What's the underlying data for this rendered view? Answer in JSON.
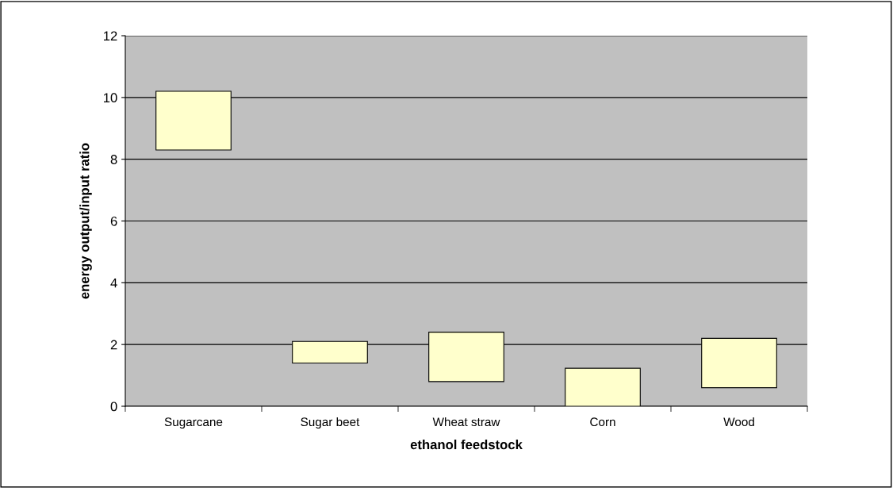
{
  "chart_data": {
    "type": "bar",
    "xlabel": "ethanol feedstock",
    "ylabel": "energy output/input ratio",
    "categories": [
      "Sugarcane",
      "Sugar beet",
      "Wheat straw",
      "Corn",
      "Wood"
    ],
    "base": [
      8.3,
      1.4,
      0.8,
      0,
      0.6
    ],
    "values": [
      1.9,
      0.7,
      1.6,
      1.23,
      1.6
    ],
    "color": "#ffffcc",
    "ylim": [
      0,
      12
    ],
    "yticks": [
      0,
      2,
      4,
      6,
      8,
      10,
      12
    ],
    "grid": "y",
    "legend": false
  }
}
